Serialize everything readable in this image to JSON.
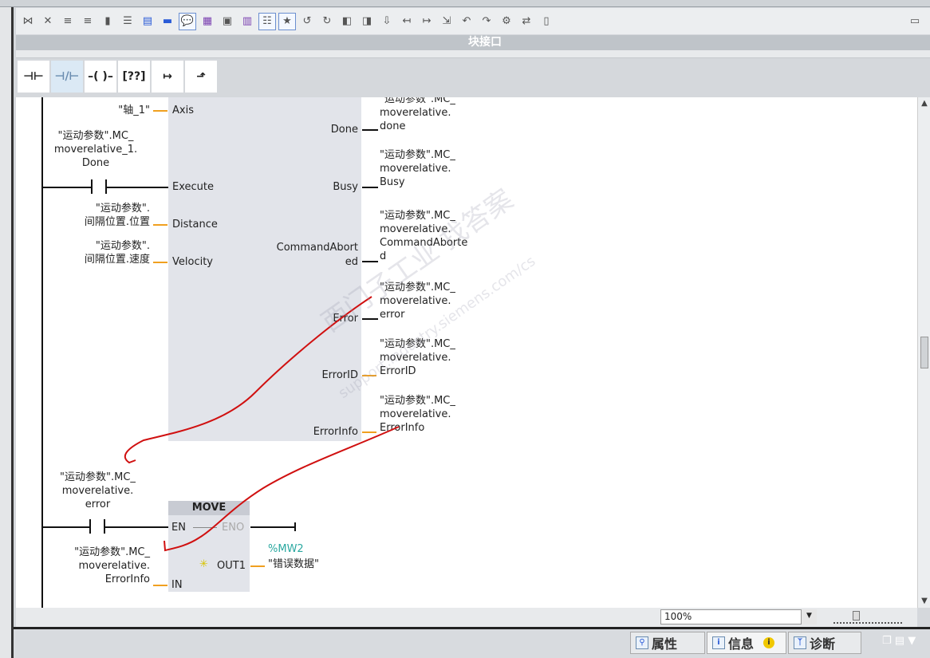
{
  "toolbar": {
    "icons": [
      "insert-network-icon",
      "delete-network-icon",
      "insert-row-icon",
      "add-row-icon",
      "open-block-icon",
      "absolute-operand-icon",
      "networks-open-icon",
      "networks-close-icon",
      "comments-icon",
      "display-tags-icon",
      "display-comments-icon",
      "display-addresses-icon",
      "navigation-list-icon",
      "favorites-icon",
      "monitor-icon",
      "ladder-icon",
      "compare-icon",
      "block-icon",
      "download-icon",
      "jump-back-icon",
      "jump-forward-icon",
      "bookmark-icon",
      "goto-icon",
      "settings-icon",
      "monitor-on-icon",
      "link-icon",
      "memory-icon",
      "split-view-icon"
    ]
  },
  "interface_bar": {
    "title": "块接口"
  },
  "palette": {
    "items": [
      {
        "name": "normally-open-contact",
        "glyph": "⊣⊢"
      },
      {
        "name": "normally-closed-contact",
        "glyph": "⊣/⊢"
      },
      {
        "name": "coil",
        "glyph": "–( )–"
      },
      {
        "name": "empty-box",
        "glyph": "[??]"
      },
      {
        "name": "open-branch",
        "glyph": "↦"
      },
      {
        "name": "close-branch",
        "glyph": "⬏"
      }
    ]
  },
  "fb_block": {
    "inputs": {
      "axis": {
        "pin": "Axis",
        "operand": "\"轴_1\""
      },
      "execute": {
        "pin": "Execute",
        "operand_lines": [
          "\"运动参数\".MC_",
          "moverelative_1.",
          "Done"
        ]
      },
      "distance": {
        "pin": "Distance",
        "operand_lines": [
          "\"运动参数\".",
          "间隔位置.位置"
        ]
      },
      "velocity": {
        "pin": "Velocity",
        "operand_lines": [
          "\"运动参数\".",
          "间隔位置.速度"
        ]
      }
    },
    "outputs": {
      "done": {
        "pin": "Done",
        "operand_lines": [
          "\"运动参数\".MC_",
          "moverelative.",
          "done"
        ]
      },
      "busy": {
        "pin": "Busy",
        "operand_lines": [
          "\"运动参数\".MC_",
          "moverelative.",
          "Busy"
        ]
      },
      "aborted": {
        "pin_lines": [
          "CommandAbort",
          "ed"
        ],
        "operand_lines": [
          "\"运动参数\".MC_",
          "moverelative.",
          "CommandAborte",
          "d"
        ]
      },
      "error": {
        "pin": "Error",
        "operand_lines": [
          "\"运动参数\".MC_",
          "moverelative.",
          "error"
        ]
      },
      "errorid": {
        "pin": "ErrorID",
        "operand_lines": [
          "\"运动参数\".MC_",
          "moverelative.",
          "ErrorID"
        ]
      },
      "errorinfo": {
        "pin": "ErrorInfo",
        "operand_lines": [
          "\"运动参数\".MC_",
          "moverelative.",
          "ErrorInfo"
        ]
      }
    }
  },
  "move_block": {
    "title": "MOVE",
    "en": "EN",
    "eno": "ENO",
    "in": "IN",
    "out1": "OUT1",
    "contact_operand_lines": [
      "\"运动参数\".MC_",
      "moverelative.",
      "error"
    ],
    "in_operand_lines": [
      "\"运动参数\".MC_",
      "moverelative.",
      "ErrorInfo"
    ],
    "out_address": "%MW2",
    "out_operand": "\"错误数据\""
  },
  "watermark": {
    "text": "西门子工业  找答案",
    "url": "support.industry.siemens.com/cs"
  },
  "zoom": {
    "value": "100%",
    "slider_level": 0.33
  },
  "bottom_tabs": [
    {
      "label": "属性"
    },
    {
      "label": "信息",
      "active": true
    },
    {
      "label": "诊断"
    }
  ],
  "colors": {
    "operand_line": "#f0a020",
    "fb_bg": "#e2e4ea",
    "address": "#2aa8a0",
    "annotation": "#d01010"
  }
}
